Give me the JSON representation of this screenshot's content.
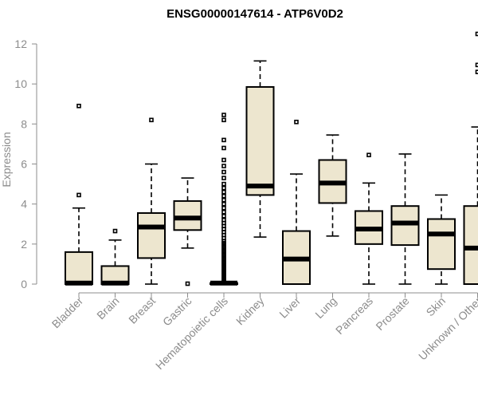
{
  "chart_data": {
    "type": "boxplot",
    "title": "ENSG00000147614 - ATP6V0D2",
    "xlabel": "",
    "ylabel": "Expression",
    "ylim": [
      0,
      12.5
    ],
    "yticks": [
      0,
      2,
      4,
      6,
      8,
      10,
      12
    ],
    "grid": false,
    "box_fill": "#ede6cf",
    "categories": [
      "Bladder",
      "Brain",
      "Breast",
      "Gastric",
      "Hematopoietic cells",
      "Kidney",
      "Liver",
      "Lung",
      "Pancreas",
      "Prostate",
      "Skin",
      "Unknown / Other"
    ],
    "boxes": [
      {
        "label": "Bladder",
        "whisker_low": 0,
        "q1": 0,
        "median": 0.05,
        "q3": 1.6,
        "whisker_high": 3.8,
        "outliers": [
          4.45,
          8.9
        ]
      },
      {
        "label": "Brain",
        "whisker_low": 0,
        "q1": 0,
        "median": 0.05,
        "q3": 0.9,
        "whisker_high": 2.2,
        "outliers": [
          2.65
        ]
      },
      {
        "label": "Breast",
        "whisker_low": 0,
        "q1": 1.3,
        "median": 2.85,
        "q3": 3.55,
        "whisker_high": 6.0,
        "outliers": [
          8.2
        ]
      },
      {
        "label": "Gastric",
        "whisker_low": 1.8,
        "q1": 2.7,
        "median": 3.3,
        "q3": 4.15,
        "whisker_high": 5.3,
        "outliers": [
          0.02
        ]
      },
      {
        "label": "Hematopoietic cells",
        "whisker_low": 0,
        "q1": 0,
        "median": 0.05,
        "q3": 0.05,
        "whisker_high": 0.1,
        "outliers": [
          0.15,
          0.25,
          0.35,
          0.45,
          0.55,
          0.65,
          0.75,
          0.85,
          0.95,
          1.05,
          1.15,
          1.25,
          1.35,
          1.45,
          1.55,
          1.65,
          1.75,
          1.85,
          1.95,
          2.05,
          2.15,
          2.3,
          2.45,
          2.6,
          2.75,
          2.9,
          3.05,
          3.2,
          3.4,
          3.6,
          3.8,
          4.0,
          4.2,
          4.4,
          4.6,
          4.8,
          5.0,
          5.3,
          5.6,
          5.9,
          6.2,
          6.8,
          7.2,
          8.2,
          8.45
        ]
      },
      {
        "label": "Kidney",
        "whisker_low": 2.35,
        "q1": 4.45,
        "median": 4.9,
        "q3": 9.85,
        "whisker_high": 11.15,
        "outliers": []
      },
      {
        "label": "Liver",
        "whisker_low": 0,
        "q1": 0,
        "median": 1.25,
        "q3": 2.65,
        "whisker_high": 5.5,
        "outliers": [
          8.1
        ]
      },
      {
        "label": "Lung",
        "whisker_low": 2.4,
        "q1": 4.05,
        "median": 5.05,
        "q3": 6.2,
        "whisker_high": 7.45,
        "outliers": []
      },
      {
        "label": "Pancreas",
        "whisker_low": 0,
        "q1": 2.0,
        "median": 2.75,
        "q3": 3.65,
        "whisker_high": 5.05,
        "outliers": [
          6.45
        ]
      },
      {
        "label": "Prostate",
        "whisker_low": 0,
        "q1": 1.95,
        "median": 3.05,
        "q3": 3.9,
        "whisker_high": 6.5,
        "outliers": []
      },
      {
        "label": "Skin",
        "whisker_low": 0,
        "q1": 0.75,
        "median": 2.5,
        "q3": 3.25,
        "whisker_high": 4.45,
        "outliers": []
      },
      {
        "label": "Unknown / Other",
        "whisker_low": 0,
        "q1": 0,
        "median": 1.8,
        "q3": 3.9,
        "whisker_high": 7.85,
        "outliers": [
          10.6,
          10.95,
          12.5
        ]
      }
    ]
  }
}
